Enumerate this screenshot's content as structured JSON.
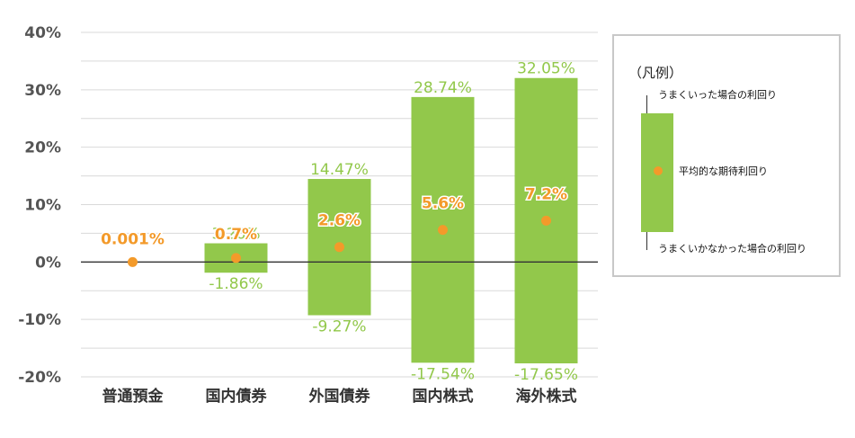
{
  "chart_data": {
    "type": "bar",
    "categories": [
      "普通預金",
      "国内債券",
      "外国債券",
      "国内株式",
      "海外株式"
    ],
    "high": [
      null,
      3.26,
      14.47,
      28.74,
      32.05
    ],
    "low": [
      null,
      -1.86,
      -9.27,
      -17.54,
      -17.65
    ],
    "average": [
      0.001,
      0.7,
      2.6,
      5.6,
      7.2
    ],
    "high_labels": [
      "",
      "3.26%",
      "14.47%",
      "28.74%",
      "32.05%"
    ],
    "low_labels": [
      "",
      "-1.86%",
      "-9.27%",
      "-17.54%",
      "-17.65%"
    ],
    "average_labels": [
      "0.001%",
      "0.7%",
      "2.6%",
      "5.6%",
      "7.2%"
    ],
    "ylim": [
      -20,
      40
    ],
    "yticks": [
      -20,
      -10,
      0,
      10,
      20,
      30,
      40
    ],
    "ytick_labels": [
      "-20%",
      "-10%",
      "0%",
      "10%",
      "20%",
      "30%",
      "40%"
    ],
    "grid": true,
    "colors": {
      "bar": "#92c84b",
      "dot": "#f39a2a",
      "label_green": "#92c84b",
      "label_orange": "#f39a2a",
      "axis": "#333333",
      "grid": "#d9d9d9",
      "tick_text": "#555555"
    }
  },
  "legend": {
    "title": "（凡例）",
    "high_label": "うまくいった場合の利回り",
    "average_label": "平均的な期待利回り",
    "low_label": "うまくいかなかった場合の利回り"
  }
}
